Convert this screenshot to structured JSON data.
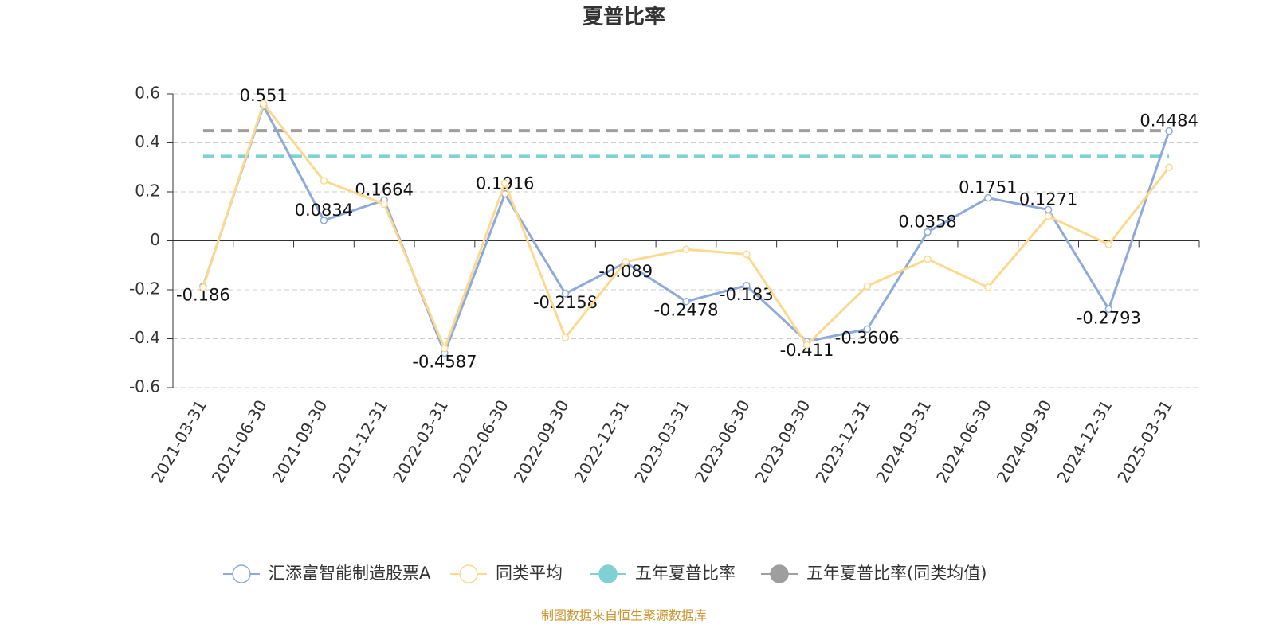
{
  "chart_data": {
    "type": "line",
    "title": "夏普比率",
    "categories": [
      "2021-03-31",
      "2021-06-30",
      "2021-09-30",
      "2021-12-31",
      "2022-03-31",
      "2022-06-30",
      "2022-09-30",
      "2022-12-31",
      "2023-03-31",
      "2023-06-30",
      "2023-09-30",
      "2023-12-31",
      "2024-03-31",
      "2024-06-30",
      "2024-09-30",
      "2024-12-31",
      "2025-03-31"
    ],
    "series": [
      {
        "name": "汇添富智能制造股票A",
        "color": "#8eaadb",
        "values": [
          -0.186,
          0.551,
          0.0834,
          0.1664,
          -0.4587,
          0.1916,
          -0.2158,
          -0.089,
          -0.2478,
          -0.183,
          -0.411,
          -0.3606,
          0.0358,
          0.1751,
          0.1271,
          -0.2793,
          0.4484
        ]
      },
      {
        "name": "同类平均",
        "color": "#fcd98f",
        "values": [
          -0.19,
          0.56,
          0.245,
          0.15,
          -0.44,
          0.235,
          -0.395,
          -0.085,
          -0.035,
          -0.055,
          -0.425,
          -0.185,
          -0.075,
          -0.19,
          0.1,
          -0.015,
          0.3
        ]
      }
    ],
    "reference_lines": [
      {
        "name": "五年夏普比率",
        "color": "#7fd1d4",
        "value": 0.345
      },
      {
        "name": "五年夏普比率(同类均值)",
        "color": "#9e9e9e",
        "value": 0.45
      }
    ],
    "ylim": [
      -0.6,
      0.6
    ],
    "yticks": [
      -0.6,
      -0.4,
      -0.2,
      0,
      0.2,
      0.4,
      0.6
    ],
    "grid": true,
    "source": "制图数据来自恒生聚源数据库"
  }
}
